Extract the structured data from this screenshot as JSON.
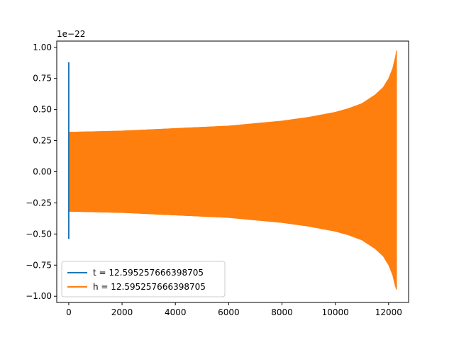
{
  "chart_data": {
    "type": "line",
    "title": "",
    "xlabel": "",
    "ylabel": "",
    "y_offset_text": "1e−22",
    "xlim": [
      -450,
      12750
    ],
    "ylim": [
      -1.05,
      1.05
    ],
    "x_ticks": [
      0,
      2000,
      4000,
      6000,
      8000,
      10000,
      12000
    ],
    "x_tick_labels": [
      "0",
      "2000",
      "4000",
      "6000",
      "8000",
      "10000",
      "12000"
    ],
    "y_ticks": [
      -1.0,
      -0.75,
      -0.5,
      -0.25,
      0.0,
      0.25,
      0.5,
      0.75,
      1.0
    ],
    "y_tick_labels": [
      "−1.00",
      "−0.75",
      "−0.50",
      "−0.25",
      "0.00",
      "0.25",
      "0.50",
      "0.75",
      "1.00"
    ],
    "grid": false,
    "legend_position": "lower-left",
    "series": [
      {
        "name": "t = 12.595257666398705",
        "color": "#1f77b4",
        "x": [
          0,
          0,
          0,
          0,
          0
        ],
        "y": [
          0.88,
          -0.25,
          -0.54,
          0.3,
          -0.3
        ]
      },
      {
        "name": "h = 12.595257666398705",
        "color": "#ff7f0e",
        "envelope": {
          "x": [
            0,
            2000,
            4000,
            6000,
            8000,
            9000,
            10000,
            10500,
            11000,
            11500,
            11800,
            12000,
            12150,
            12250,
            12300
          ],
          "upper": [
            0.32,
            0.33,
            0.35,
            0.37,
            0.41,
            0.44,
            0.48,
            0.51,
            0.55,
            0.62,
            0.68,
            0.75,
            0.83,
            0.92,
            0.98
          ],
          "lower": [
            -0.32,
            -0.33,
            -0.35,
            -0.37,
            -0.41,
            -0.44,
            -0.48,
            -0.51,
            -0.55,
            -0.62,
            -0.68,
            -0.75,
            -0.83,
            -0.92,
            -0.95
          ]
        }
      }
    ]
  }
}
